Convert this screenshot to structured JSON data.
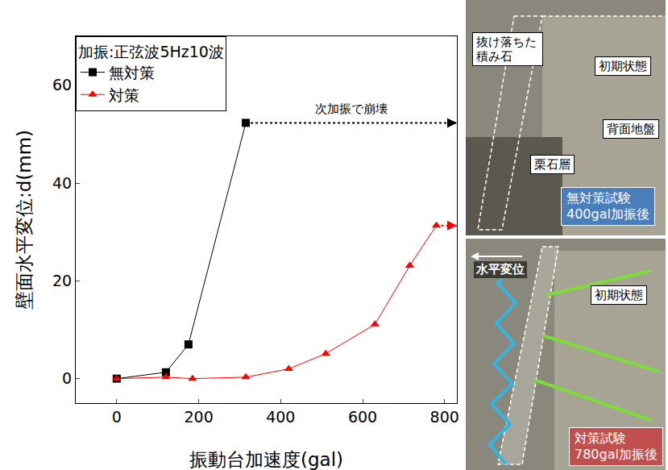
{
  "chart_data": {
    "type": "line",
    "legend_title": "加振:正弦波5Hz10波",
    "x_label": "振動台加速度(gal)",
    "y_label": "壁面水平変位:d(mm)",
    "series": [
      {
        "name": "無対策",
        "color": "#000000",
        "marker": "square",
        "x": [
          0,
          120,
          175,
          315
        ],
        "values": [
          0,
          1.3,
          7,
          52.3
        ]
      },
      {
        "name": "対策",
        "color": "#ff0000",
        "marker": "triangle-up",
        "x": [
          0,
          120,
          185,
          315,
          420,
          510,
          630,
          715,
          780
        ],
        "values": [
          0,
          0.3,
          0,
          0.3,
          2,
          5.1,
          11.1,
          23.1,
          31.3
        ]
      }
    ],
    "annotations": [
      {
        "text": "次加振で崩壊",
        "series": "無対策"
      }
    ],
    "xlim": [
      -100,
      830
    ],
    "xticks": [
      0,
      200,
      400,
      600,
      800
    ],
    "ylim": [
      -5,
      70
    ],
    "yticks": [
      0,
      20,
      40,
      60
    ],
    "grid": false,
    "legend": "upper left"
  },
  "photos": [
    {
      "labels": [
        "抜け落ちた積み石",
        "初期状態",
        "背面地盤",
        "栗石層"
      ],
      "caption": [
        "無対策試験",
        "400gal加振後"
      ]
    },
    {
      "labels": [
        "水平変位",
        "初期状態"
      ],
      "caption": [
        "対策試験",
        "780gal加振後"
      ]
    }
  ]
}
